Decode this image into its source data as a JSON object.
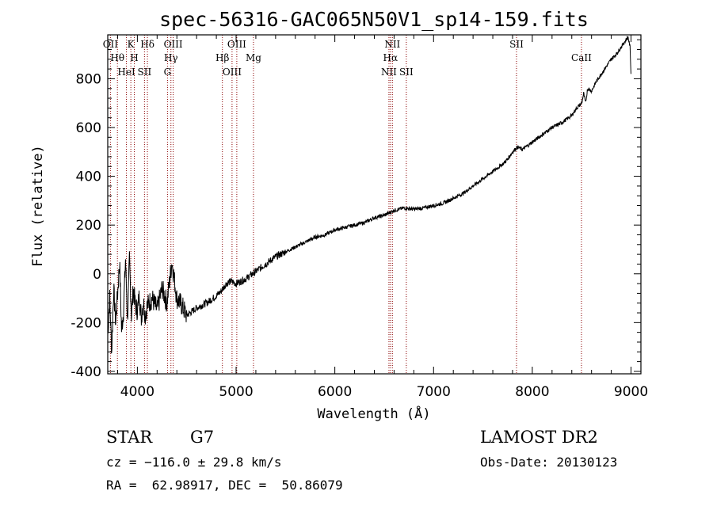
{
  "chart_data": {
    "type": "line",
    "title": "spec-56316-GAC065N50V1_sp14-159.fits",
    "xlabel": "Wavelength (Å)",
    "ylabel": "Flux (relative)",
    "xlim": [
      3700,
      9100
    ],
    "ylim": [
      -410,
      980
    ],
    "x_ticks": [
      4000,
      5000,
      6000,
      7000,
      8000,
      9000
    ],
    "y_ticks": [
      -400,
      -200,
      0,
      200,
      400,
      600,
      800
    ],
    "grid": false,
    "series": [
      {
        "x": [
          3700,
          3720,
          3740,
          3760,
          3780,
          3800,
          3820,
          3840,
          3860,
          3880,
          3900,
          3920,
          3940,
          3960,
          3980,
          4000,
          4020,
          4040,
          4060,
          4080,
          4100,
          4150,
          4200,
          4250,
          4300,
          4350,
          4400,
          4450,
          4500,
          4600,
          4700,
          4800,
          4850,
          4900,
          4950,
          5000,
          5100,
          5200,
          5300,
          5400,
          5500,
          5600,
          5700,
          5800,
          5900,
          6000,
          6100,
          6200,
          6300,
          6400,
          6500,
          6550,
          6600,
          6700,
          6800,
          6900,
          7000,
          7100,
          7200,
          7300,
          7400,
          7500,
          7600,
          7700,
          7750,
          7800,
          7850,
          7900,
          8000,
          8100,
          8200,
          8300,
          8400,
          8450,
          8500,
          8520,
          8540,
          8560,
          8600,
          8650,
          8700,
          8750,
          8800,
          8850,
          8900,
          8950,
          8970,
          8990,
          9000
        ],
        "y": [
          -250,
          -100,
          -320,
          -60,
          -200,
          -80,
          50,
          -230,
          -150,
          60,
          -190,
          60,
          -170,
          -60,
          -130,
          -150,
          -90,
          -180,
          -110,
          -170,
          -130,
          -100,
          -150,
          -60,
          -120,
          50,
          -100,
          -130,
          -170,
          -140,
          -120,
          -90,
          -70,
          -40,
          -30,
          -40,
          -20,
          10,
          40,
          70,
          90,
          110,
          130,
          150,
          160,
          180,
          190,
          200,
          210,
          230,
          240,
          250,
          260,
          270,
          265,
          270,
          280,
          290,
          310,
          330,
          360,
          390,
          420,
          450,
          470,
          500,
          520,
          510,
          540,
          570,
          600,
          620,
          650,
          680,
          700,
          740,
          700,
          760,
          750,
          790,
          820,
          850,
          880,
          900,
          930,
          960,
          970,
          930,
          820
        ]
      }
    ],
    "lines": [
      {
        "label": "OII",
        "x": 3727
      },
      {
        "label": "Hθ",
        "x": 3798
      },
      {
        "label": "HeI",
        "x": 3889
      },
      {
        "label": "K",
        "x": 3934
      },
      {
        "label": "H",
        "x": 3969
      },
      {
        "label": "SII",
        "x": 4072
      },
      {
        "label": "Hδ",
        "x": 4102
      },
      {
        "label": "Hγ",
        "x": 4340
      },
      {
        "label": "G",
        "x": 4305
      },
      {
        "label": "OIII",
        "x": 4363
      },
      {
        "label": "Hβ",
        "x": 4861
      },
      {
        "label": "OIII",
        "x": 4959
      },
      {
        "label": "OIII",
        "x": 5007
      },
      {
        "label": "Mg",
        "x": 5176
      },
      {
        "label": "NII",
        "x": 6548
      },
      {
        "label": "NII",
        "x": 6583
      },
      {
        "label": "Hα",
        "x": 6563
      },
      {
        "label": "SII",
        "x": 6724
      },
      {
        "label": "SII",
        "x": 7840
      },
      {
        "label": "CaII",
        "x": 8498
      }
    ]
  },
  "footer": {
    "class_label": "STAR",
    "subclass": "G7",
    "survey": "LAMOST DR2",
    "cz": "cz = −116.0 ± 29.8 km/s",
    "obs_date": "Obs-Date: 20130123",
    "radec": "RA =  62.98917, DEC =  50.86079"
  },
  "colors": {
    "line": "#8b0000",
    "spectrum": "#000000",
    "axes": "#000000"
  }
}
